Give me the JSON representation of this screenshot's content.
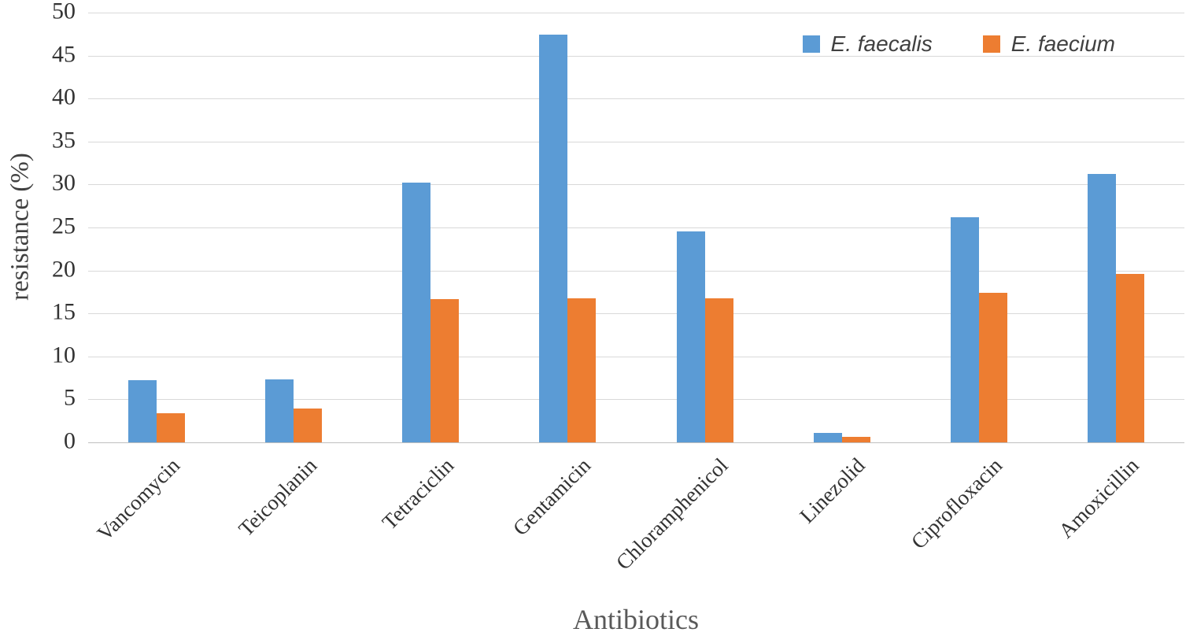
{
  "chart_data": {
    "type": "bar",
    "title": "",
    "xlabel": "Antibiotics",
    "ylabel": "resistance (%)",
    "ylim": [
      0,
      50
    ],
    "ytick_step": 5,
    "grid": true,
    "gridline_color": "#d9d9d9",
    "legend_position": "top-right",
    "categories": [
      "Vancomycin",
      "Teicoplanin",
      "Tetraciclin",
      "Gentamicin",
      "Chloramphenicol",
      "Linezolid",
      "Ciprofloxacin",
      "Amoxicillin"
    ],
    "series": [
      {
        "name": "E. faecalis",
        "color": "#5b9bd5",
        "values": [
          7.2,
          7.3,
          30.2,
          47.4,
          24.5,
          1.1,
          26.2,
          31.2
        ]
      },
      {
        "name": "E. faecium",
        "color": "#ed7d31",
        "values": [
          3.4,
          3.9,
          16.7,
          16.8,
          16.8,
          0.6,
          17.4,
          19.6
        ]
      }
    ]
  }
}
